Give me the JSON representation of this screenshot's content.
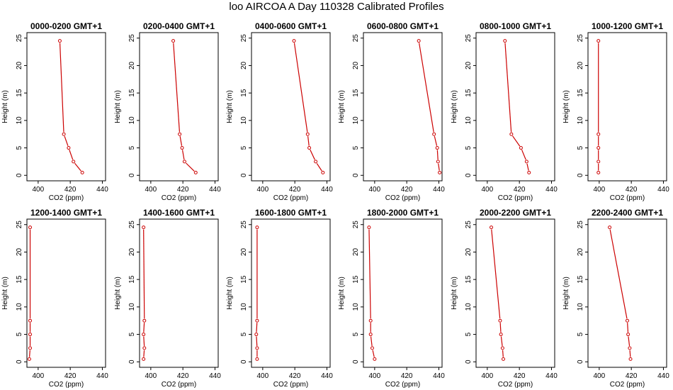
{
  "page": {
    "title": "loo AIRCOA A  Day 110328  Calibrated Profiles"
  },
  "colors": {
    "profile": "#cc0000",
    "axis": "#000000",
    "background": "#ffffff"
  },
  "chart_data": [
    {
      "type": "line",
      "title": "0000-0200 GMT+1",
      "xlabel": "CO2 (ppm)",
      "ylabel": "Height (m)",
      "xlim": [
        393,
        442
      ],
      "ylim": [
        -1,
        26
      ],
      "xticks": [
        400,
        420,
        440
      ],
      "xtick_labels": [
        "400",
        "420",
        "440"
      ],
      "yticks": [
        0,
        5,
        10,
        15,
        20,
        25
      ],
      "ytick_labels": [
        "0",
        "5",
        "10",
        "15",
        "20",
        "25"
      ],
      "points": [
        [
          413.5,
          24.5
        ],
        [
          416,
          7.5
        ],
        [
          419,
          5
        ],
        [
          422,
          2.5
        ],
        [
          427.5,
          0.5
        ]
      ]
    },
    {
      "type": "line",
      "title": "0200-0400 GMT+1",
      "xlabel": "CO2 (ppm)",
      "ylabel": "Height (m)",
      "xlim": [
        393,
        442
      ],
      "ylim": [
        -1,
        26
      ],
      "xticks": [
        400,
        420,
        440
      ],
      "xtick_labels": [
        "400",
        "420",
        "440"
      ],
      "yticks": [
        0,
        5,
        10,
        15,
        20,
        25
      ],
      "ytick_labels": [
        "0",
        "5",
        "10",
        "15",
        "20",
        "25"
      ],
      "points": [
        [
          414,
          24.5
        ],
        [
          418,
          7.5
        ],
        [
          419.5,
          5
        ],
        [
          421,
          2.5
        ],
        [
          428,
          0.5
        ]
      ]
    },
    {
      "type": "line",
      "title": "0400-0600 GMT+1",
      "xlabel": "CO2 (ppm)",
      "ylabel": "Height (m)",
      "xlim": [
        393,
        442
      ],
      "ylim": [
        -1,
        26
      ],
      "xticks": [
        400,
        420,
        440
      ],
      "xtick_labels": [
        "400",
        "420",
        "440"
      ],
      "yticks": [
        0,
        5,
        10,
        15,
        20,
        25
      ],
      "ytick_labels": [
        "0",
        "5",
        "10",
        "15",
        "20",
        "25"
      ],
      "points": [
        [
          419.5,
          24.5
        ],
        [
          428,
          7.5
        ],
        [
          429,
          5
        ],
        [
          433,
          2.5
        ],
        [
          437.5,
          0.5
        ]
      ]
    },
    {
      "type": "line",
      "title": "0600-0800 GMT+1",
      "xlabel": "CO2 (ppm)",
      "ylabel": "Height (m)",
      "xlim": [
        393,
        442
      ],
      "ylim": [
        -1,
        26
      ],
      "xticks": [
        400,
        420,
        440
      ],
      "xtick_labels": [
        "400",
        "420",
        "440"
      ],
      "yticks": [
        0,
        5,
        10,
        15,
        20,
        25
      ],
      "ytick_labels": [
        "0",
        "5",
        "10",
        "15",
        "20",
        "25"
      ],
      "points": [
        [
          427.5,
          24.5
        ],
        [
          437,
          7.5
        ],
        [
          439,
          5
        ],
        [
          439.5,
          2.5
        ],
        [
          440.5,
          0.5
        ]
      ]
    },
    {
      "type": "line",
      "title": "0800-1000 GMT+1",
      "xlabel": "CO2 (ppm)",
      "ylabel": "Height (m)",
      "xlim": [
        393,
        442
      ],
      "ylim": [
        -1,
        26
      ],
      "xticks": [
        400,
        420,
        440
      ],
      "xtick_labels": [
        "400",
        "420",
        "440"
      ],
      "yticks": [
        0,
        5,
        10,
        15,
        20,
        25
      ],
      "ytick_labels": [
        "0",
        "5",
        "10",
        "15",
        "20",
        "25"
      ],
      "points": [
        [
          411,
          24.5
        ],
        [
          415,
          7.5
        ],
        [
          421,
          5
        ],
        [
          424.5,
          2.5
        ],
        [
          426,
          0.5
        ]
      ]
    },
    {
      "type": "line",
      "title": "1000-1200 GMT+1",
      "xlabel": "CO2 (ppm)",
      "ylabel": "Height (m)",
      "xlim": [
        393,
        442
      ],
      "ylim": [
        -1,
        26
      ],
      "xticks": [
        400,
        420,
        440
      ],
      "xtick_labels": [
        "400",
        "420",
        "440"
      ],
      "yticks": [
        0,
        5,
        10,
        15,
        20,
        25
      ],
      "ytick_labels": [
        "0",
        "5",
        "10",
        "15",
        "20",
        "25"
      ],
      "points": [
        [
          399.5,
          24.5
        ],
        [
          399.5,
          7.5
        ],
        [
          399.5,
          5
        ],
        [
          399.5,
          2.5
        ],
        [
          399.5,
          0.5
        ]
      ]
    },
    {
      "type": "line",
      "title": "1200-1400 GMT+1",
      "xlabel": "CO2 (ppm)",
      "ylabel": "Height (m)",
      "xlim": [
        393,
        442
      ],
      "ylim": [
        -1,
        26
      ],
      "xticks": [
        400,
        420,
        440
      ],
      "xtick_labels": [
        "400",
        "420",
        "440"
      ],
      "yticks": [
        0,
        5,
        10,
        15,
        20,
        25
      ],
      "ytick_labels": [
        "0",
        "5",
        "10",
        "15",
        "20",
        "25"
      ],
      "points": [
        [
          395,
          24.5
        ],
        [
          395,
          7.5
        ],
        [
          395,
          5
        ],
        [
          395,
          2.5
        ],
        [
          394.5,
          0.5
        ]
      ]
    },
    {
      "type": "line",
      "title": "1400-1600 GMT+1",
      "xlabel": "CO2 (ppm)",
      "ylabel": "Height (m)",
      "xlim": [
        393,
        442
      ],
      "ylim": [
        -1,
        26
      ],
      "xticks": [
        400,
        420,
        440
      ],
      "xtick_labels": [
        "400",
        "420",
        "440"
      ],
      "yticks": [
        0,
        5,
        10,
        15,
        20,
        25
      ],
      "ytick_labels": [
        "0",
        "5",
        "10",
        "15",
        "20",
        "25"
      ],
      "points": [
        [
          395.5,
          24.5
        ],
        [
          396,
          7.5
        ],
        [
          395.5,
          5
        ],
        [
          396,
          2.5
        ],
        [
          395.5,
          0.5
        ]
      ]
    },
    {
      "type": "line",
      "title": "1600-1800 GMT+1",
      "xlabel": "CO2 (ppm)",
      "ylabel": "Height (m)",
      "xlim": [
        393,
        442
      ],
      "ylim": [
        -1,
        26
      ],
      "xticks": [
        400,
        420,
        440
      ],
      "xtick_labels": [
        "400",
        "420",
        "440"
      ],
      "yticks": [
        0,
        5,
        10,
        15,
        20,
        25
      ],
      "ytick_labels": [
        "0",
        "5",
        "10",
        "15",
        "20",
        "25"
      ],
      "points": [
        [
          396.5,
          24.5
        ],
        [
          396.5,
          7.5
        ],
        [
          396,
          5
        ],
        [
          396.5,
          2.5
        ],
        [
          396.5,
          0.5
        ]
      ]
    },
    {
      "type": "line",
      "title": "1800-2000 GMT+1",
      "xlabel": "CO2 (ppm)",
      "ylabel": "Height (m)",
      "xlim": [
        393,
        442
      ],
      "ylim": [
        -1,
        26
      ],
      "xticks": [
        400,
        420,
        440
      ],
      "xtick_labels": [
        "400",
        "420",
        "440"
      ],
      "yticks": [
        0,
        5,
        10,
        15,
        20,
        25
      ],
      "ytick_labels": [
        "0",
        "5",
        "10",
        "15",
        "20",
        "25"
      ],
      "points": [
        [
          396.5,
          24.5
        ],
        [
          397.5,
          7.5
        ],
        [
          397.5,
          5
        ],
        [
          398.5,
          2.5
        ],
        [
          400,
          0.5
        ]
      ]
    },
    {
      "type": "line",
      "title": "2000-2200 GMT+1",
      "xlabel": "CO2 (ppm)",
      "ylabel": "Height (m)",
      "xlim": [
        393,
        442
      ],
      "ylim": [
        -1,
        26
      ],
      "xticks": [
        400,
        420,
        440
      ],
      "xtick_labels": [
        "400",
        "420",
        "440"
      ],
      "yticks": [
        0,
        5,
        10,
        15,
        20,
        25
      ],
      "ytick_labels": [
        "0",
        "5",
        "10",
        "15",
        "20",
        "25"
      ],
      "points": [
        [
          402.5,
          24.5
        ],
        [
          408,
          7.5
        ],
        [
          408.5,
          5
        ],
        [
          409.5,
          2.5
        ],
        [
          410,
          0.5
        ]
      ]
    },
    {
      "type": "line",
      "title": "2200-2400 GMT+1",
      "xlabel": "CO2 (ppm)",
      "ylabel": "Height (m)",
      "xlim": [
        393,
        442
      ],
      "ylim": [
        -1,
        26
      ],
      "xticks": [
        400,
        420,
        440
      ],
      "xtick_labels": [
        "400",
        "420",
        "440"
      ],
      "yticks": [
        0,
        5,
        10,
        15,
        20,
        25
      ],
      "ytick_labels": [
        "0",
        "5",
        "10",
        "15",
        "20",
        "25"
      ],
      "points": [
        [
          406.5,
          24.5
        ],
        [
          417.5,
          7.5
        ],
        [
          418,
          5
        ],
        [
          419,
          2.5
        ],
        [
          419.5,
          0.5
        ]
      ]
    }
  ]
}
